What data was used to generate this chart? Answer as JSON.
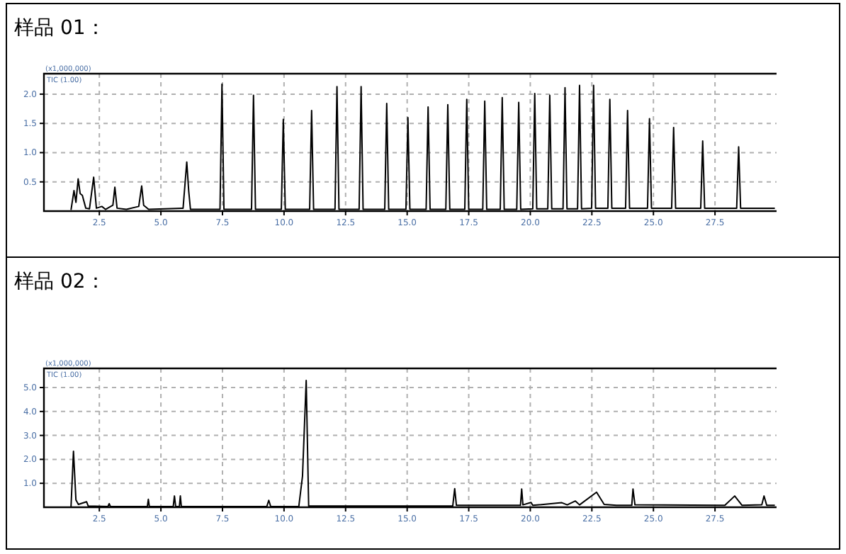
{
  "chart_data": [
    {
      "type": "line",
      "title": "样品 01：",
      "ylabel": "(x1,000,000)",
      "annotations": [
        "TIC (1.00)"
      ],
      "grid": true,
      "xlim": [
        0.25,
        30
      ],
      "ylim": [
        0,
        2.35
      ],
      "xticks": [
        2.5,
        {
          "value": 5,
          "label": "5.0"
        },
        7.5,
        {
          "value": 10,
          "label": "10.0"
        },
        12.5,
        {
          "value": 15,
          "label": "15.0"
        },
        17.5,
        {
          "value": 20,
          "label": "20.0"
        },
        22.5,
        {
          "value": 25,
          "label": "25.0"
        },
        27.5
      ],
      "yticks": [
        0.5,
        {
          "value": 1,
          "label": "1.0"
        },
        1.5,
        {
          "value": 2,
          "label": "2.0"
        }
      ],
      "series": [
        {
          "color": "#000000",
          "x": [
            1.35,
            1.47,
            1.55,
            1.64,
            1.72,
            1.81,
            1.95,
            2.1,
            2.27,
            2.38,
            2.6,
            2.75,
            3.05,
            3.13,
            3.22,
            3.6,
            4.1,
            4.22,
            4.3,
            4.5,
            5.9,
            6.05,
            6.13,
            6.2,
            7.4,
            7.48,
            7.56,
            8.68,
            8.76,
            8.84,
            9.89,
            9.97,
            10.05,
            11.04,
            11.12,
            11.2,
            12.07,
            12.15,
            12.23,
            13.05,
            13.13,
            13.21,
            14.09,
            14.17,
            14.25,
            14.95,
            15.03,
            15.11,
            15.77,
            15.85,
            15.93,
            16.57,
            16.65,
            16.73,
            17.34,
            17.42,
            17.5,
            18.07,
            18.15,
            18.23,
            18.78,
            18.86,
            18.94,
            19.45,
            19.53,
            19.61,
            20.1,
            20.18,
            20.26,
            20.71,
            20.79,
            20.87,
            21.33,
            21.41,
            21.49,
            21.92,
            22.0,
            22.08,
            22.49,
            22.57,
            22.65,
            23.15,
            23.23,
            23.31,
            23.87,
            23.95,
            24.03,
            24.76,
            24.84,
            24.92,
            25.74,
            25.82,
            25.9,
            26.92,
            27.0,
            27.08,
            28.38,
            28.46,
            28.54,
            29.93
          ],
          "values": [
            0.02,
            0.35,
            0.15,
            0.55,
            0.3,
            0.27,
            0.05,
            0.04,
            0.58,
            0.05,
            0.08,
            0.03,
            0.1,
            0.41,
            0.05,
            0.03,
            0.08,
            0.43,
            0.1,
            0.03,
            0.05,
            0.84,
            0.34,
            0.03,
            0.03,
            2.17,
            0.03,
            0.03,
            1.98,
            0.03,
            0.03,
            1.57,
            0.03,
            0.03,
            1.72,
            0.03,
            0.03,
            2.13,
            0.03,
            0.03,
            2.13,
            0.03,
            0.03,
            1.84,
            0.03,
            0.03,
            1.6,
            0.03,
            0.03,
            1.78,
            0.03,
            0.03,
            1.82,
            0.03,
            0.03,
            1.91,
            0.03,
            0.03,
            1.88,
            0.03,
            0.03,
            1.94,
            0.03,
            0.03,
            1.86,
            0.03,
            0.04,
            2.01,
            0.04,
            0.04,
            1.98,
            0.04,
            0.04,
            2.11,
            0.04,
            0.04,
            2.15,
            0.04,
            0.05,
            2.15,
            0.05,
            0.05,
            1.91,
            0.05,
            0.05,
            1.72,
            0.05,
            0.05,
            1.58,
            0.05,
            0.05,
            1.43,
            0.05,
            0.05,
            1.2,
            0.05,
            0.05,
            1.1,
            0.05,
            0.05
          ]
        }
      ]
    },
    {
      "type": "line",
      "title": "样品 02：",
      "ylabel": "(x1,000,000)",
      "annotations": [
        "TIC (1.00)"
      ],
      "grid": true,
      "xlim": [
        0.25,
        30
      ],
      "ylim": [
        0,
        5.8
      ],
      "xticks": [
        2.5,
        {
          "value": 5,
          "label": "5.0"
        },
        7.5,
        {
          "value": 10,
          "label": "10.0"
        },
        12.5,
        {
          "value": 15,
          "label": "15.0"
        },
        17.5,
        {
          "value": 20,
          "label": "20.0"
        },
        22.5,
        {
          "value": 25,
          "label": "25.0"
        },
        27.5
      ],
      "yticks": [
        {
          "value": 1,
          "label": "1.0"
        },
        {
          "value": 2,
          "label": "2.0"
        },
        {
          "value": 3,
          "label": "3.0"
        },
        {
          "value": 4,
          "label": "4.0"
        },
        {
          "value": 5,
          "label": "5.0"
        }
      ],
      "series": [
        {
          "color": "#000000",
          "x": [
            1.35,
            1.45,
            1.55,
            1.65,
            1.98,
            2.05,
            2.85,
            2.9,
            2.95,
            4.45,
            4.49,
            4.53,
            5.5,
            5.55,
            5.6,
            5.75,
            5.79,
            5.83,
            9.3,
            9.38,
            9.46,
            10.6,
            10.75,
            10.9,
            11.0,
            16.85,
            16.93,
            17.0,
            19.6,
            19.65,
            19.7,
            20.03,
            20.1,
            21.28,
            21.5,
            21.83,
            22.0,
            22.69,
            23.0,
            23.5,
            24.12,
            24.17,
            24.25,
            27.9,
            28.3,
            28.6,
            29.4,
            29.49,
            29.6,
            29.93
          ],
          "values": [
            0.03,
            2.34,
            0.3,
            0.12,
            0.23,
            0.05,
            0.03,
            0.15,
            0.03,
            0.03,
            0.33,
            0.03,
            0.03,
            0.47,
            0.03,
            0.03,
            0.47,
            0.03,
            0.03,
            0.29,
            0.03,
            0.03,
            1.3,
            5.3,
            0.05,
            0.05,
            0.78,
            0.08,
            0.08,
            0.76,
            0.1,
            0.2,
            0.08,
            0.19,
            0.1,
            0.26,
            0.1,
            0.63,
            0.12,
            0.08,
            0.08,
            0.76,
            0.1,
            0.08,
            0.47,
            0.08,
            0.1,
            0.47,
            0.08,
            0.08
          ]
        }
      ]
    }
  ]
}
